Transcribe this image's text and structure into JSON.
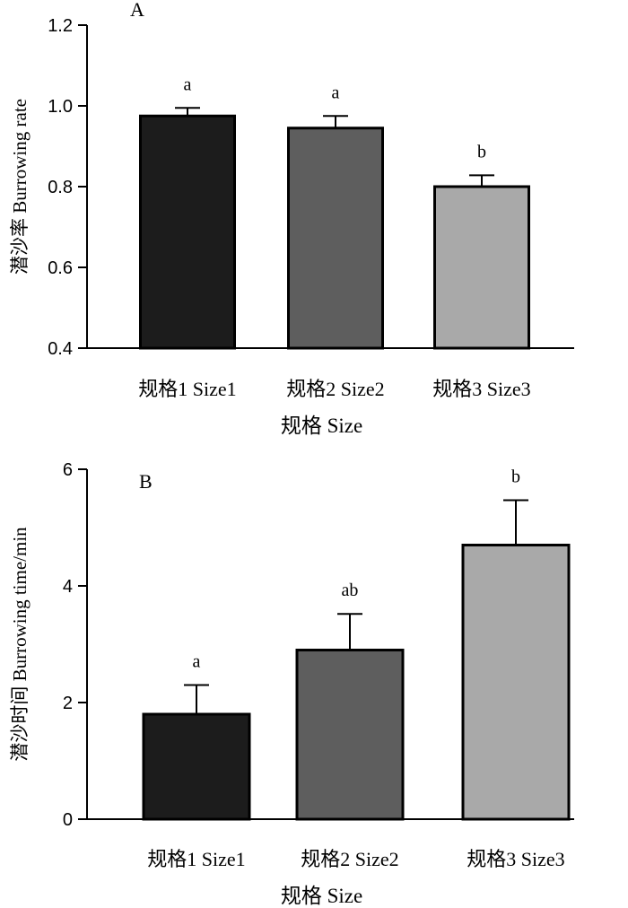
{
  "chart_data": [
    {
      "type": "bar",
      "panel_label": "A",
      "title": "",
      "ylabel": "潜沙率 Burrowing rate",
      "xlabel": "规格 Size",
      "categories": [
        "规格1 Size1",
        "规格2 Size2",
        "规格3 Size3"
      ],
      "values": [
        0.975,
        0.945,
        0.8
      ],
      "errors": [
        0.02,
        0.03,
        0.028
      ],
      "significance": [
        "a",
        "a",
        "b"
      ],
      "colors": [
        "#1c1c1c",
        "#5e5e5e",
        "#a9a9a9"
      ],
      "ylim": [
        0.4,
        1.2
      ],
      "yticks": [
        0.4,
        0.6,
        0.8,
        1.0,
        1.2
      ],
      "ytick_labels": [
        "0.4",
        "0.6",
        "0.8",
        "1.0",
        "1.2"
      ]
    },
    {
      "type": "bar",
      "panel_label": "B",
      "title": "",
      "ylabel": "潜沙时间 Burrowing time/min",
      "xlabel": "规格 Size",
      "categories": [
        "规格1 Size1",
        "规格2 Size2",
        "规格3 Size3"
      ],
      "values": [
        1.8,
        2.9,
        4.7
      ],
      "errors": [
        0.5,
        0.62,
        0.77
      ],
      "significance": [
        "a",
        "ab",
        "b"
      ],
      "colors": [
        "#1c1c1c",
        "#5e5e5e",
        "#a9a9a9"
      ],
      "ylim": [
        0,
        6
      ],
      "yticks": [
        0,
        2,
        4,
        6
      ],
      "ytick_labels": [
        "0",
        "2",
        "4",
        "6"
      ]
    }
  ]
}
